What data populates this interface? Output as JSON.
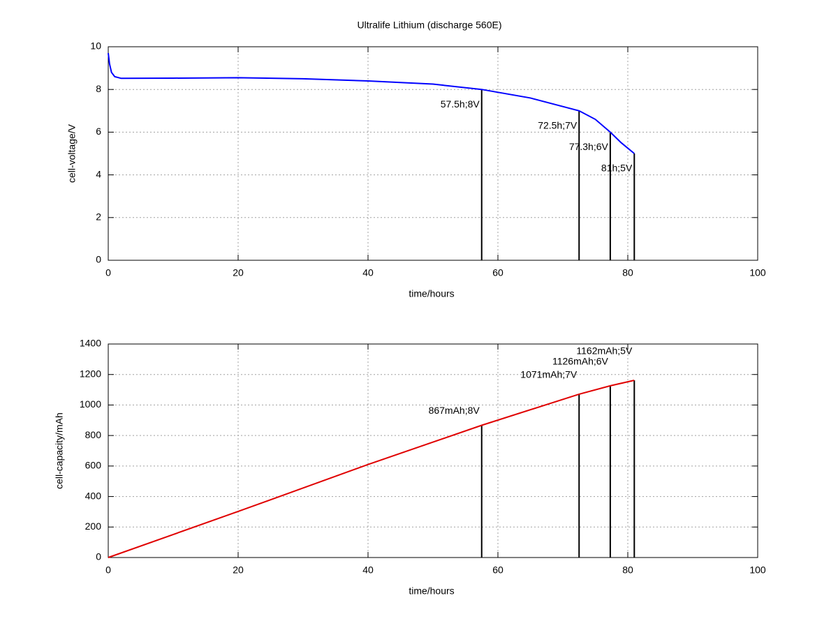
{
  "chart_data": [
    {
      "type": "line",
      "title": "Ultralife Lithium (discharge 560E)",
      "x_label": "time/hours",
      "y_label": "cell-voltage/V",
      "x": [
        0,
        0.2,
        0.5,
        1,
        2,
        10,
        20,
        30,
        40,
        50,
        57.5,
        65,
        72.5,
        75,
        77.3,
        79,
        81
      ],
      "values": [
        9.7,
        9.2,
        8.8,
        8.6,
        8.52,
        8.53,
        8.55,
        8.5,
        8.4,
        8.25,
        8.0,
        7.6,
        7.0,
        6.6,
        6.0,
        5.5,
        5.0
      ],
      "color": "#0000ff",
      "xlim": [
        0,
        100
      ],
      "xticks": [
        0,
        20,
        40,
        60,
        80,
        100
      ],
      "ylim": [
        0,
        10
      ],
      "yticks": [
        0,
        2,
        4,
        6,
        8,
        10
      ],
      "grid": true,
      "annotations": [
        {
          "x": 57.5,
          "y": 8,
          "label": "57.5h;8V"
        },
        {
          "x": 72.5,
          "y": 7,
          "label": "72.5h;7V"
        },
        {
          "x": 77.3,
          "y": 6,
          "label": "77.3h;6V"
        },
        {
          "x": 81,
          "y": 5,
          "label": "81h;5V"
        }
      ]
    },
    {
      "type": "line",
      "x_label": "time/hours",
      "y_label": "cell-capacity/mAh",
      "x": [
        0,
        20,
        40,
        57.5,
        72.5,
        77.3,
        81
      ],
      "values": [
        0,
        302,
        610,
        867,
        1071,
        1126,
        1162
      ],
      "color": "#e00000",
      "xlim": [
        0,
        100
      ],
      "xticks": [
        0,
        20,
        40,
        60,
        80,
        100
      ],
      "ylim": [
        0,
        1400
      ],
      "yticks": [
        0,
        200,
        400,
        600,
        800,
        1000,
        1200,
        1400
      ],
      "grid": true,
      "annotations": [
        {
          "x": 57.5,
          "y": 867,
          "label": "867mAh;8V"
        },
        {
          "x": 72.5,
          "y": 1071,
          "label": "1071mAh;7V"
        },
        {
          "x": 77.3,
          "y": 1126,
          "label": "1126mAh;6V"
        },
        {
          "x": 81,
          "y": 1162,
          "label": "1162mAh;5V"
        }
      ]
    }
  ]
}
